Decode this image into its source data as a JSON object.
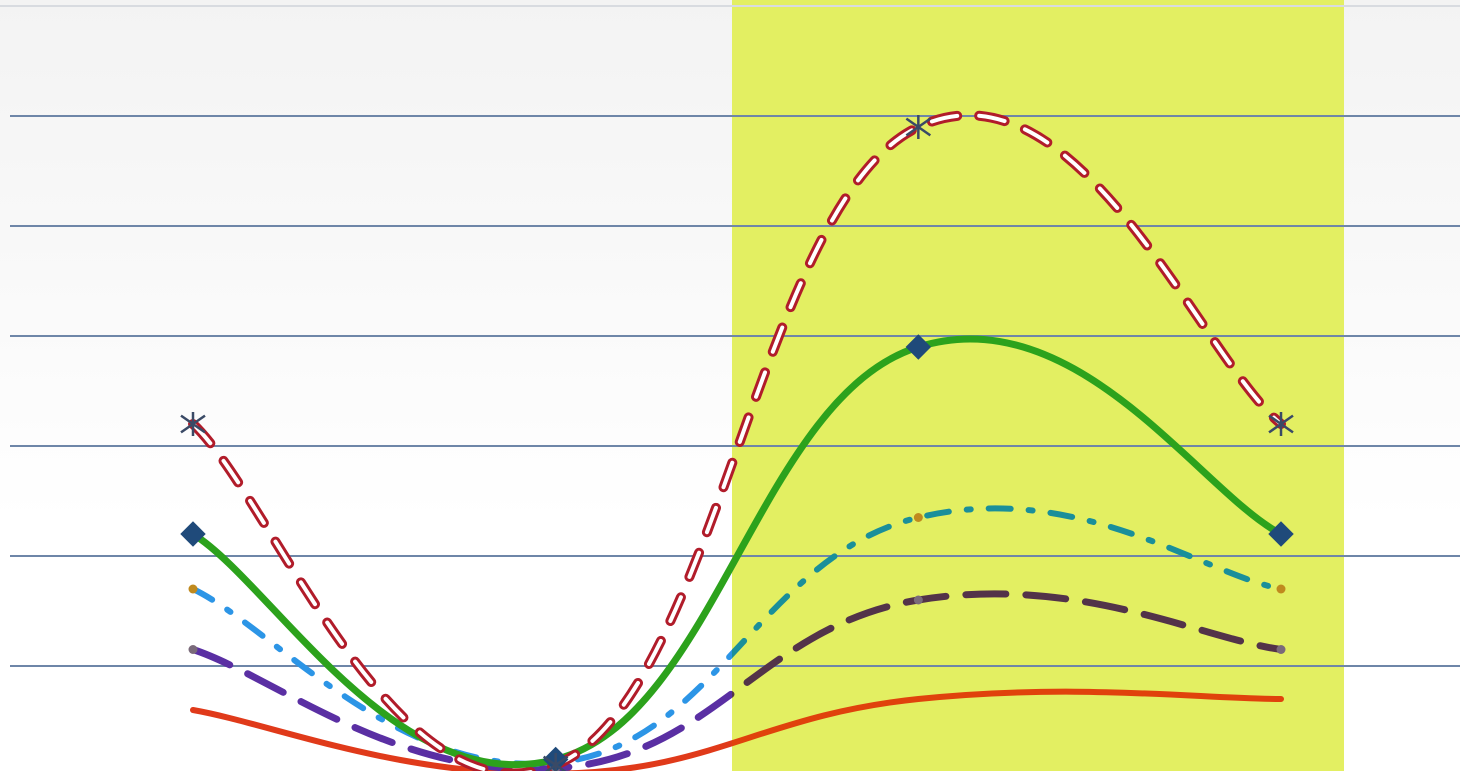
{
  "chart_data": {
    "type": "line",
    "title": "",
    "xlabel": "",
    "ylabel": "",
    "x": [
      1,
      2,
      3,
      4
    ],
    "ylim": [
      0,
      7
    ],
    "grid": true,
    "gridlines": [
      1,
      2,
      3,
      4,
      5,
      6
    ],
    "smooth": true,
    "highlight_band": {
      "from": 2.5,
      "to": 4.17,
      "color": "#e2ee5a"
    },
    "series": [
      {
        "color": "#b11c2a",
        "style": "double-dash",
        "marker": "asterisk",
        "width": 10,
        "values": [
          3.2,
          0.1,
          5.9,
          3.2
        ]
      },
      {
        "color": "#2ca21c",
        "style": "solid",
        "marker": "diamond",
        "width": 7,
        "values": [
          2.2,
          0.15,
          3.9,
          2.2
        ]
      },
      {
        "color": "#1a8f9a",
        "style": "dash-dot",
        "marker": "dot",
        "width": 6,
        "values": [
          1.7,
          0.12,
          2.35,
          1.7
        ]
      },
      {
        "color": "#533349",
        "style": "long-dash",
        "marker": "dot",
        "width": 7,
        "values": [
          1.15,
          0.07,
          1.6,
          1.15
        ]
      },
      {
        "color": "#e0420c",
        "style": "solid",
        "marker": "none",
        "width": 6,
        "values": [
          0.6,
          0.02,
          0.7,
          0.7
        ]
      }
    ],
    "segment_colors_left": {
      "#1a8f9a": "#2c95e6",
      "#533349": "#5a2fa3",
      "#e0420c": "#e03a1a"
    }
  }
}
